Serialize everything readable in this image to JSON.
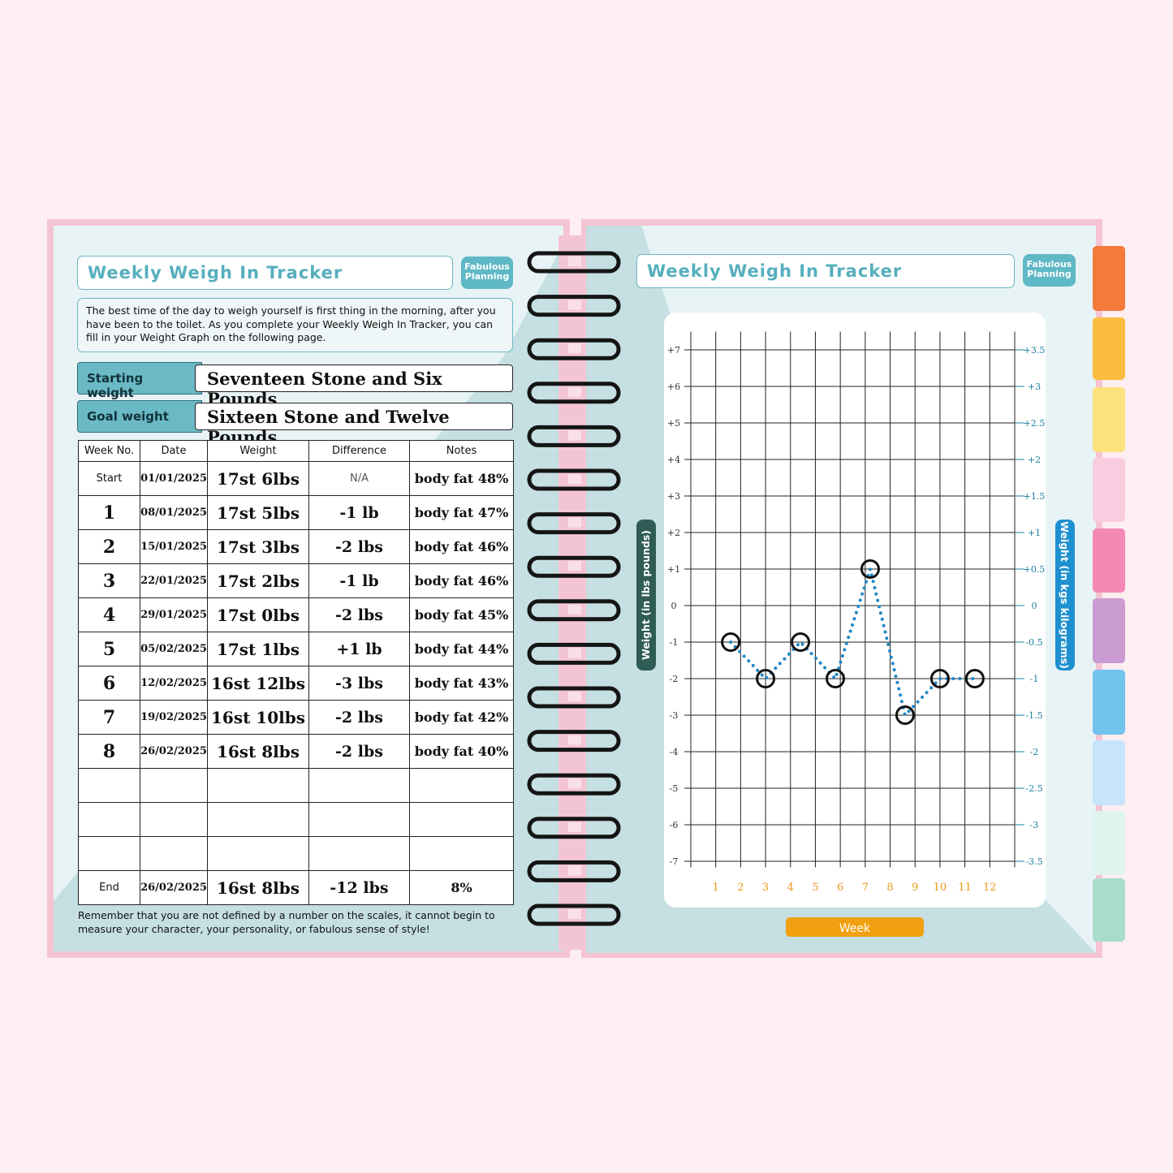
{
  "left_page": {
    "title": "Weekly Weigh In Tracker",
    "logo": "Fabulous Planning",
    "intro": "The best time of the day to weigh yourself is first thing in the morning, after you have been to the toilet. As you complete your Weekly Weigh In Tracker, you can fill in your Weight Graph on the following page.",
    "starting_weight": {
      "label": "Starting weight",
      "value": "Seventeen Stone and Six Pounds"
    },
    "goal_weight": {
      "label": "Goal weight",
      "value": "Sixteen Stone and Twelve Pounds"
    },
    "table": {
      "headers": [
        "Week No.",
        "Date",
        "Weight",
        "Difference",
        "Notes"
      ],
      "rows": [
        [
          "Start",
          "01/01/2025",
          "17st 6lbs",
          "N/A",
          "body fat 48%"
        ],
        [
          "1",
          "08/01/2025",
          "17st 5lbs",
          "-1 lb",
          "body fat 47%"
        ],
        [
          "2",
          "15/01/2025",
          "17st 3lbs",
          "-2 lbs",
          "body fat 46%"
        ],
        [
          "3",
          "22/01/2025",
          "17st 2lbs",
          "-1 lb",
          "body fat 46%"
        ],
        [
          "4",
          "29/01/2025",
          "17st 0lbs",
          "-2 lbs",
          "body fat 45%"
        ],
        [
          "5",
          "05/02/2025",
          "17st 1lbs",
          "+1 lb",
          "body fat 44%"
        ],
        [
          "6",
          "12/02/2025",
          "16st 12lbs",
          "-3 lbs",
          "body fat 43%"
        ],
        [
          "7",
          "19/02/2025",
          "16st 10lbs",
          "-2 lbs",
          "body fat 42%"
        ],
        [
          "8",
          "26/02/2025",
          "16st 8lbs",
          "-2 lbs",
          "body fat 40%"
        ]
      ],
      "end_row": [
        "End",
        "26/02/2025",
        "16st 8lbs",
        "-12 lbs",
        "8%"
      ]
    },
    "footer": "Remember that you are not defined by a number on the scales, it cannot begin to measure your character, your personality, or fabulous sense of style!"
  },
  "right_page": {
    "title": "Weekly Weigh In Tracker",
    "logo": "Fabulous Planning"
  },
  "chart_data": {
    "type": "line",
    "x": [
      1.6,
      3,
      4.4,
      5.8,
      7.2,
      8.6,
      10,
      11.4
    ],
    "values": [
      -1,
      -2,
      -1,
      -2,
      1,
      -3,
      -2,
      -2
    ],
    "color": "#1f86c4",
    "marker_color": "#111111",
    "xlim": [
      0,
      13
    ],
    "xticks": [
      1,
      2,
      3,
      4,
      5,
      6,
      7,
      8,
      9,
      10,
      11,
      12
    ],
    "ylim": [
      -7.3,
      7.5
    ],
    "yticks": [
      {
        "value": 7,
        "label": "+7"
      },
      {
        "value": 6,
        "label": "+6"
      },
      {
        "value": 5,
        "label": "+5"
      },
      {
        "value": 4,
        "label": "+4"
      },
      {
        "value": 3,
        "label": "+3"
      },
      {
        "value": 2,
        "label": "+2"
      },
      {
        "value": 1,
        "label": "+1"
      },
      0,
      -1,
      -2,
      -3,
      -4,
      -5,
      -6,
      -7
    ],
    "y2lim": [
      -3.65,
      3.75
    ],
    "y2ticks": [
      {
        "value": 3.5,
        "label": "+3.5"
      },
      {
        "value": 3,
        "label": "+3"
      },
      {
        "value": 2.5,
        "label": "+2.5"
      },
      {
        "value": 2,
        "label": "+2"
      },
      {
        "value": 1.5,
        "label": "+1.5"
      },
      {
        "value": 1,
        "label": "+1"
      },
      {
        "value": 0.5,
        "label": "+0.5"
      },
      0,
      -0.5,
      -1,
      -1.5,
      -2,
      -2.5,
      -3,
      -3.5
    ],
    "y_label": "Weight (in lbs pounds)",
    "y2_label": "Weight (in kgs kilograms)",
    "x_label": "Week",
    "grid": true
  }
}
